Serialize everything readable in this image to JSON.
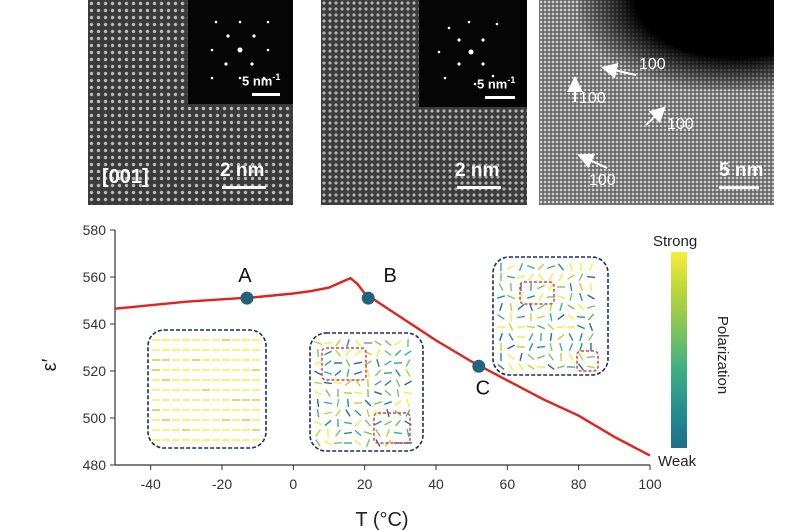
{
  "panels": {
    "left": {
      "zone_label": "[001]",
      "scale_label": "2 nm",
      "inset_scale_label": "5 nm",
      "inset_scale_sup": "-1"
    },
    "middle": {
      "scale_label": "2 nm",
      "inset_scale_label": "5 nm",
      "inset_scale_sup": "-1"
    },
    "right": {
      "scale_label": "5 nm",
      "direction_labels": [
        "100",
        "100",
        "100",
        "100"
      ]
    }
  },
  "chart_data": {
    "type": "line",
    "xlabel": "T (°C)",
    "ylabel": "ε′",
    "xlim": [
      -50,
      100
    ],
    "ylim": [
      480,
      580
    ],
    "xticks": [
      -40,
      -20,
      0,
      20,
      40,
      60,
      80,
      100
    ],
    "yticks": [
      480,
      500,
      520,
      540,
      560,
      580
    ],
    "series": [
      {
        "color": "#e0231c",
        "x": [
          -50,
          -40,
          -30,
          -20,
          -10,
          0,
          5,
          10,
          13,
          16,
          18,
          20,
          30,
          40,
          50,
          60,
          70,
          80,
          90,
          100
        ],
        "y": [
          546.5,
          548,
          549.5,
          550.5,
          551.5,
          553,
          554,
          555.5,
          557.5,
          559.5,
          557,
          553,
          543,
          533,
          524,
          516,
          508,
          501,
          492,
          484
        ]
      }
    ],
    "points": [
      {
        "label": "A",
        "x": -13,
        "y": 551
      },
      {
        "label": "B",
        "x": 21,
        "y": 551
      },
      {
        "label": "C",
        "x": 52,
        "y": 522
      }
    ],
    "colorbar": {
      "title": "Polarization",
      "top_label": "Strong",
      "bottom_label": "Weak",
      "colors": [
        "#f6ee3a",
        "#b9d53c",
        "#7cc55b",
        "#3fae83",
        "#248f90",
        "#1e6f8a"
      ]
    },
    "marker_color": "#21637d",
    "inset_border_color": "#1b2f5a",
    "highlight_color": "#e83a3a"
  }
}
